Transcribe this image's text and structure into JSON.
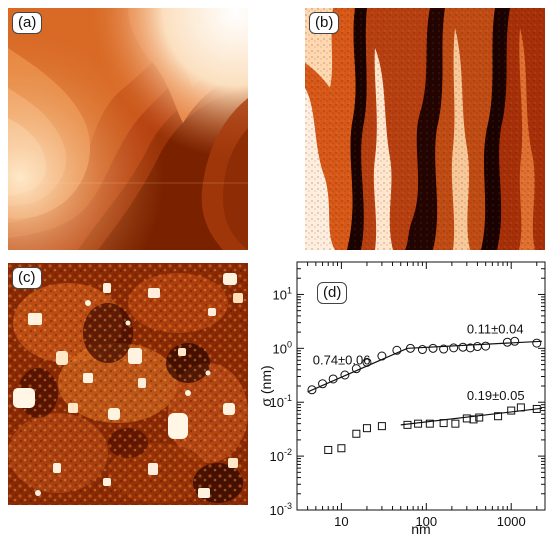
{
  "panels": [
    {
      "label": "(a)"
    },
    {
      "label": "(b)"
    },
    {
      "label": "(c)"
    },
    {
      "label": "(d)"
    }
  ],
  "colors": {
    "dark": "#5a1200",
    "mid": "#c84a10",
    "light": "#f09a50",
    "bright": "#fff2dc"
  },
  "chart_data": {
    "type": "scatter",
    "xscale": "log",
    "yscale": "log",
    "xlabel": "nm",
    "ylabel": "σ (nm)",
    "xlim": [
      3,
      2500
    ],
    "ylim": [
      0.001,
      40
    ],
    "xticks": [
      {
        "v": 10,
        "l": "10"
      },
      {
        "v": 100,
        "l": "100"
      },
      {
        "v": 1000,
        "l": "1000"
      }
    ],
    "yticks": [
      {
        "v": 0.001,
        "base": "10",
        "exp": "-3"
      },
      {
        "v": 0.01,
        "base": "10",
        "exp": "-2"
      },
      {
        "v": 0.1,
        "base": "10",
        "exp": "-1"
      },
      {
        "v": 1,
        "base": "10",
        "exp": "0"
      },
      {
        "v": 10,
        "base": "10",
        "exp": "1"
      }
    ],
    "series": [
      {
        "marker": "circle",
        "x": [
          4.5,
          6,
          8,
          11,
          15,
          20,
          30,
          45,
          65,
          90,
          120,
          160,
          210,
          270,
          330,
          400,
          500,
          900,
          1100,
          2000
        ],
        "y": [
          0.17,
          0.22,
          0.27,
          0.32,
          0.42,
          0.55,
          0.72,
          0.92,
          1.0,
          0.95,
          1.0,
          0.97,
          1.02,
          1.05,
          1.02,
          1.08,
          1.1,
          1.3,
          1.35,
          1.25
        ]
      },
      {
        "marker": "square",
        "x": [
          7,
          10,
          15,
          20,
          30,
          60,
          80,
          110,
          160,
          220,
          300,
          360,
          420,
          700,
          1000,
          1300,
          2000
        ],
        "y": [
          0.013,
          0.014,
          0.026,
          0.033,
          0.036,
          0.038,
          0.04,
          0.04,
          0.041,
          0.04,
          0.05,
          0.048,
          0.052,
          0.055,
          0.07,
          0.08,
          0.075
        ]
      }
    ],
    "fit_lines": [
      {
        "x": [
          4,
          60
        ],
        "y": [
          0.155,
          1.0
        ]
      },
      {
        "x": [
          60,
          2300
        ],
        "y": [
          1.0,
          1.35
        ]
      },
      {
        "x": [
          50,
          2300
        ],
        "y": [
          0.038,
          0.077
        ]
      }
    ],
    "annotations": [
      {
        "text": "0.74±0.06",
        "x": 4.6,
        "y": 0.5
      },
      {
        "text": "0.11±0.04",
        "x": 300,
        "y": 1.9
      },
      {
        "text": "0.19±0.05",
        "x": 300,
        "y": 0.11
      }
    ]
  }
}
